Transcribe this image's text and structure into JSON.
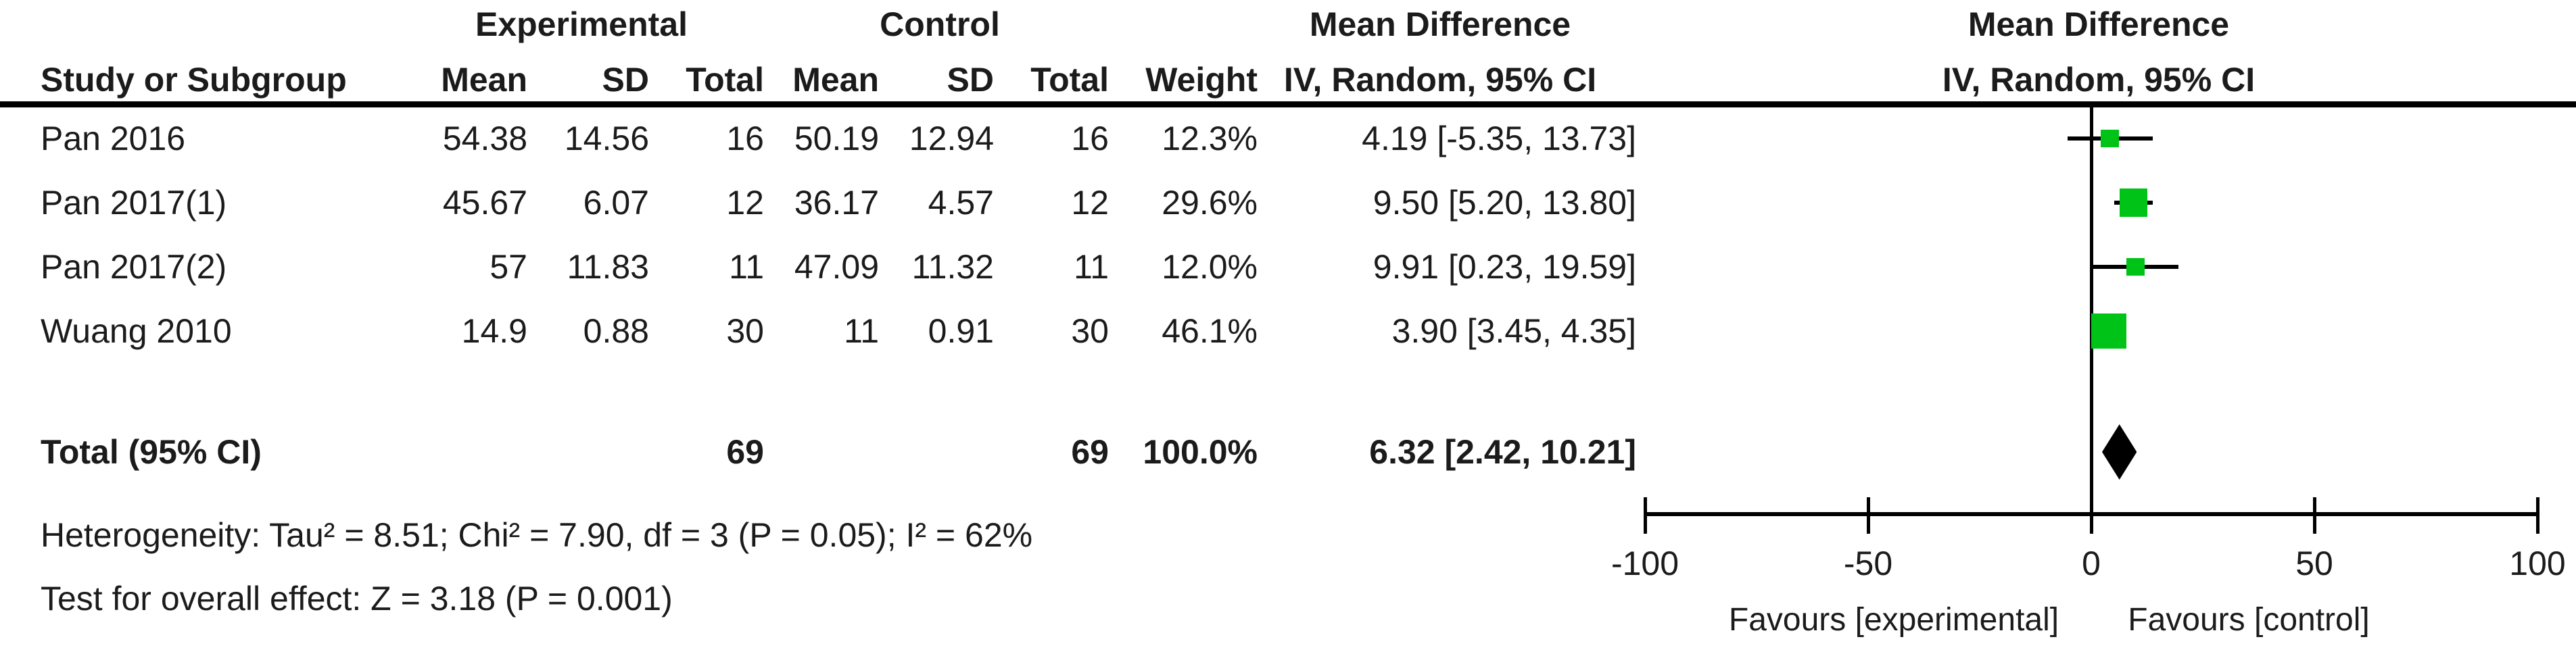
{
  "title_row": {
    "experimental": "Experimental",
    "control": "Control",
    "md_left_line1": "Mean Difference",
    "md_right_line1": "Mean Difference"
  },
  "header_row": {
    "study": "Study or Subgroup",
    "mean_exp": "Mean",
    "sd_exp": "SD",
    "total_exp": "Total",
    "mean_ctl": "Mean",
    "sd_ctl": "SD",
    "total_ctl": "Total",
    "weight": "Weight",
    "md_left_line2": "IV, Random, 95% CI",
    "md_right_line2": "IV, Random, 95% CI"
  },
  "rows": [
    {
      "study": "Pan 2016",
      "mean_exp": "54.38",
      "sd_exp": "14.56",
      "total_exp": "16",
      "mean_ctl": "50.19",
      "sd_ctl": "12.94",
      "total_ctl": "16",
      "weight": "12.3%",
      "md_ci": "4.19 [-5.35, 13.73]"
    },
    {
      "study": "Pan 2017(1)",
      "mean_exp": "45.67",
      "sd_exp": "6.07",
      "total_exp": "12",
      "mean_ctl": "36.17",
      "sd_ctl": "4.57",
      "total_ctl": "12",
      "weight": "29.6%",
      "md_ci": "9.50 [5.20, 13.80]"
    },
    {
      "study": "Pan 2017(2)",
      "mean_exp": "57",
      "sd_exp": "11.83",
      "total_exp": "11",
      "mean_ctl": "47.09",
      "sd_ctl": "11.32",
      "total_ctl": "11",
      "weight": "12.0%",
      "md_ci": "9.91 [0.23, 19.59]"
    },
    {
      "study": "Wuang 2010",
      "mean_exp": "14.9",
      "sd_exp": "0.88",
      "total_exp": "30",
      "mean_ctl": "11",
      "sd_ctl": "0.91",
      "total_ctl": "30",
      "weight": "46.1%",
      "md_ci": "3.90 [3.45, 4.35]"
    }
  ],
  "total_row": {
    "label": "Total (95% CI)",
    "total_exp": "69",
    "total_ctl": "69",
    "weight": "100.0%",
    "md_ci": "6.32 [2.42, 10.21]"
  },
  "footnotes": {
    "heterogeneity": "Heterogeneity: Tau² = 8.51; Chi² = 7.90, df = 3 (P = 0.05); I² = 62%",
    "overall_effect": "Test for overall effect: Z = 3.18 (P = 0.001)"
  },
  "chart_data": {
    "type": "scatter",
    "variant": "forest-plot",
    "effect_measure": "Mean Difference",
    "model": "IV, Random, 95% CI",
    "studies": [
      {
        "name": "Pan 2016",
        "md": 4.19,
        "ci_low": -5.35,
        "ci_high": 13.73,
        "weight_pct": 12.3
      },
      {
        "name": "Pan 2017(1)",
        "md": 9.5,
        "ci_low": 5.2,
        "ci_high": 13.8,
        "weight_pct": 29.6
      },
      {
        "name": "Pan 2017(2)",
        "md": 9.91,
        "ci_low": 0.23,
        "ci_high": 19.59,
        "weight_pct": 12.0
      },
      {
        "name": "Wuang 2010",
        "md": 3.9,
        "ci_low": 3.45,
        "ci_high": 4.35,
        "weight_pct": 46.1
      }
    ],
    "total": {
      "md": 6.32,
      "ci_low": 2.42,
      "ci_high": 10.21,
      "weight_pct": 100.0
    },
    "axis": {
      "min": -100,
      "max": 100,
      "ticks": [
        -100,
        -50,
        0,
        50,
        100
      ]
    },
    "favours_left": "Favours [experimental]",
    "favours_right": "Favours [control]",
    "marker_color": "#00C317",
    "diamond_color": "#000000",
    "line_color": "#000000"
  }
}
